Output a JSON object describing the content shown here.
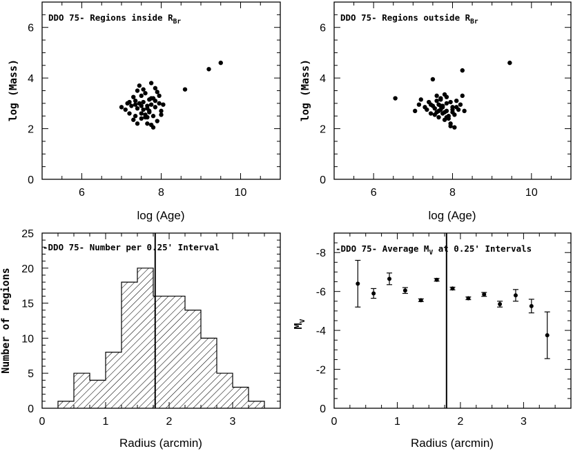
{
  "figure_title": "DDO 75 four-panel figure",
  "chart_data": [
    {
      "id": "p1",
      "type": "scatter",
      "title_main": "DDO 75- Regions inside R",
      "title_sub": "Br",
      "xlabel": "log (Age)",
      "ylabel": "log (Mass)",
      "xlim": [
        5,
        11
      ],
      "ylim": [
        0,
        7
      ],
      "xticks": [
        "6",
        "8",
        "10"
      ],
      "yticks": [
        "0",
        "2",
        "4",
        "6"
      ],
      "x": [
        7.0,
        7.1,
        7.15,
        7.2,
        7.25,
        7.3,
        7.35,
        7.35,
        7.4,
        7.4,
        7.45,
        7.5,
        7.5,
        7.55,
        7.55,
        7.6,
        7.6,
        7.65,
        7.65,
        7.7,
        7.7,
        7.75,
        7.75,
        7.8,
        7.8,
        7.85,
        7.85,
        7.9,
        7.95,
        8.0,
        8.05,
        7.3,
        7.45,
        7.6,
        7.75,
        7.9,
        7.2,
        7.35,
        7.5,
        7.65,
        7.8,
        7.95,
        7.4,
        7.55,
        7.7,
        7.85,
        8.0,
        7.5,
        7.65,
        7.75,
        8.6,
        9.2,
        9.5
      ],
      "y": [
        2.85,
        2.75,
        3.0,
        2.6,
        2.9,
        3.25,
        2.5,
        3.1,
        2.8,
        3.5,
        3.0,
        2.4,
        3.3,
        2.75,
        3.05,
        2.55,
        3.4,
        2.9,
        2.2,
        3.15,
        2.65,
        2.95,
        3.8,
        2.5,
        3.2,
        2.85,
        3.6,
        2.3,
        3.0,
        2.7,
        2.95,
        2.35,
        3.7,
        2.45,
        2.15,
        3.45,
        3.05,
        2.95,
        2.6,
        2.8,
        2.05,
        3.3,
        2.2,
        3.55,
        2.7,
        3.1,
        2.55,
        2.9,
        2.45,
        3.2,
        3.55,
        4.35,
        4.6
      ]
    },
    {
      "id": "p2",
      "type": "scatter",
      "title_main": "DDO 75- Regions outside R",
      "title_sub": "Br",
      "xlabel": "log (Age)",
      "ylabel": "log (Mass)",
      "xlim": [
        5,
        11
      ],
      "ylim": [
        0,
        7
      ],
      "xticks": [
        "6",
        "8",
        "10"
      ],
      "yticks": [
        "0",
        "2",
        "4",
        "6"
      ],
      "x": [
        6.55,
        7.05,
        7.15,
        7.2,
        7.3,
        7.35,
        7.4,
        7.45,
        7.5,
        7.5,
        7.55,
        7.6,
        7.6,
        7.65,
        7.65,
        7.7,
        7.7,
        7.75,
        7.75,
        7.8,
        7.8,
        7.85,
        7.85,
        7.9,
        7.95,
        8.0,
        8.05,
        8.1,
        8.15,
        8.2,
        8.25,
        8.3,
        7.55,
        7.7,
        7.85,
        7.95,
        8.1,
        7.45,
        7.65,
        7.8,
        7.9,
        8.0,
        7.6,
        7.75,
        7.95,
        8.05,
        7.7,
        7.85,
        8.0,
        8.25,
        9.45
      ],
      "y": [
        3.2,
        2.7,
        2.95,
        3.15,
        2.85,
        2.75,
        3.05,
        2.6,
        2.9,
        3.95,
        2.8,
        2.65,
        3.3,
        2.95,
        2.45,
        2.75,
        3.15,
        2.6,
        2.9,
        2.35,
        3.35,
        2.7,
        3.0,
        2.5,
        2.2,
        2.85,
        2.05,
        3.1,
        2.75,
        2.95,
        4.3,
        2.7,
        2.55,
        3.2,
        2.45,
        3.05,
        2.85,
        2.95,
        2.7,
        2.65,
        2.4,
        2.75,
        3.1,
        2.85,
        2.1,
        2.55,
        2.9,
        3.25,
        2.65,
        3.3,
        4.6
      ]
    },
    {
      "id": "p3",
      "type": "bar",
      "title_main": "-DDO 75- Number per 0.25' Interval",
      "xlabel": "Radius (arcmin)",
      "ylabel": "Number of regions",
      "xlim": [
        0,
        3.75
      ],
      "ylim": [
        0,
        25
      ],
      "xticks": [
        "0",
        "1",
        "2",
        "3"
      ],
      "yticks": [
        "0",
        "5",
        "10",
        "15",
        "20",
        "25"
      ],
      "bin_edges": [
        0.25,
        0.5,
        0.75,
        1.0,
        1.25,
        1.5,
        1.75,
        2.0,
        2.25,
        2.5,
        2.75,
        3.0,
        3.25,
        3.5
      ],
      "values": [
        1,
        5,
        4,
        8,
        18,
        20,
        16,
        16,
        14,
        10,
        5,
        3,
        1
      ],
      "vline": 1.78
    },
    {
      "id": "p4",
      "type": "scatter",
      "title_main": "-DDO 75- Average M",
      "title_sub": "V",
      "title_rest": " at 0.25' Intervals",
      "xlabel": "Radius (arcmin)",
      "ylabel": "M",
      "ylabel_sub": "V",
      "xlim": [
        0,
        3.75
      ],
      "ylim": [
        0,
        -9
      ],
      "xticks": [
        "0",
        "1",
        "2",
        "3"
      ],
      "yticks": [
        "0",
        "-2",
        "-4",
        "-6",
        "-8"
      ],
      "x": [
        0.375,
        0.625,
        0.875,
        1.125,
        1.375,
        1.625,
        1.875,
        2.125,
        2.375,
        2.625,
        2.875,
        3.125,
        3.375
      ],
      "y": [
        -6.4,
        -5.9,
        -6.65,
        -6.05,
        -5.55,
        -6.6,
        -6.15,
        -5.65,
        -5.85,
        -5.35,
        -5.8,
        -5.25,
        -3.75
      ],
      "err": [
        1.2,
        0.25,
        0.3,
        0.15,
        0.07,
        0.07,
        0.07,
        0.07,
        0.1,
        0.15,
        0.3,
        0.35,
        1.2
      ],
      "vline": 1.78
    }
  ]
}
